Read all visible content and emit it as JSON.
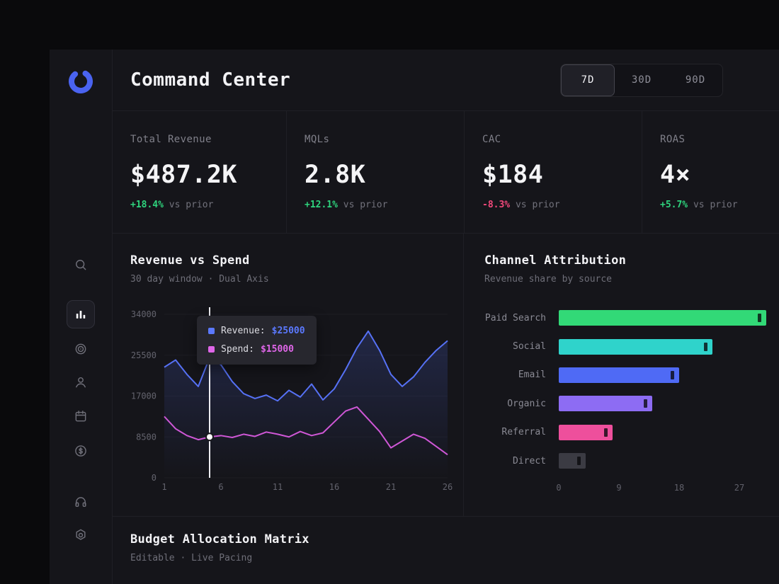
{
  "app": {
    "title": "Command Center"
  },
  "header": {
    "timeframes": [
      {
        "label": "7D",
        "active": true
      },
      {
        "label": "30D",
        "active": false
      },
      {
        "label": "90D",
        "active": false
      }
    ]
  },
  "sidebar": {
    "logo": "brand-logo",
    "items": [
      {
        "icon": "search",
        "active": false
      },
      {
        "icon": "bar-chart",
        "active": true
      },
      {
        "icon": "target",
        "active": false
      },
      {
        "icon": "user",
        "active": false
      },
      {
        "icon": "calendar",
        "active": false
      },
      {
        "icon": "dollar",
        "active": false
      },
      {
        "icon": "headphones",
        "active": false
      },
      {
        "icon": "settings",
        "active": false
      }
    ]
  },
  "kpis": [
    {
      "label": "Total Revenue",
      "value": "$487.2K",
      "delta": "+18.4%",
      "direction": "up",
      "suffix": "vs prior"
    },
    {
      "label": "MQLs",
      "value": "2.8K",
      "delta": "+12.1%",
      "direction": "up",
      "suffix": "vs prior"
    },
    {
      "label": "CAC",
      "value": "$184",
      "delta": "-8.3%",
      "direction": "down",
      "suffix": "vs prior"
    },
    {
      "label": "ROAS",
      "value": "4×",
      "delta": "+5.7%",
      "direction": "up",
      "suffix": "vs prior"
    }
  ],
  "chart_data": [
    {
      "type": "line",
      "title": "Revenue vs Spend",
      "subtitle": "30 day window · Dual Axis",
      "x": [
        1,
        2,
        3,
        4,
        5,
        6,
        7,
        8,
        9,
        10,
        11,
        12,
        13,
        14,
        15,
        16,
        17,
        18,
        19,
        20,
        21,
        22,
        23,
        24,
        25,
        26
      ],
      "x_ticks": [
        1,
        6,
        11,
        16,
        21,
        26
      ],
      "y_ticks": [
        0,
        8500,
        17000,
        25500,
        34000
      ],
      "ylim": [
        0,
        34000
      ],
      "y2lim": [
        0,
        60000
      ],
      "series": [
        {
          "name": "Revenue",
          "color": "#5671f5",
          "axis": "left",
          "values": [
            23000,
            24500,
            21500,
            19000,
            25000,
            23500,
            20000,
            17500,
            16500,
            17200,
            16000,
            18200,
            16800,
            19500,
            16200,
            18500,
            22500,
            27000,
            30500,
            26500,
            21500,
            19000,
            21000,
            24000,
            26500,
            28500
          ]
        },
        {
          "name": "Spend",
          "color": "#cf57d6",
          "axis": "right",
          "values": [
            22500,
            18000,
            15500,
            14000,
            15000,
            15500,
            14800,
            16000,
            15200,
            16800,
            16000,
            15000,
            17000,
            15500,
            16500,
            20500,
            24500,
            26000,
            21500,
            17000,
            11000,
            13500,
            16000,
            14500,
            11500,
            8500
          ]
        }
      ],
      "cursor": {
        "day": 5,
        "tooltip": [
          {
            "label": "Revenue:",
            "value": "$25000",
            "color": "#5b79ff"
          },
          {
            "label": "Spend:",
            "value": "$15000",
            "color": "#df66e8"
          }
        ]
      }
    },
    {
      "type": "bar",
      "orientation": "horizontal",
      "title": "Channel Attribution",
      "subtitle": "Revenue share by source",
      "categories": [
        "Paid Search",
        "Social",
        "Email",
        "Organic",
        "Referral",
        "Direct"
      ],
      "values": [
        31,
        23,
        18,
        14,
        8,
        4
      ],
      "colors": [
        "#32d977",
        "#2fd3cb",
        "#4f6af5",
        "#8d6cf3",
        "#ee4f9c",
        "#3b3b43"
      ],
      "x_ticks": [
        0,
        9,
        18,
        27
      ],
      "xlim": [
        0,
        27
      ]
    }
  ],
  "budget": {
    "title": "Budget Allocation Matrix",
    "subtitle": "Editable · Live Pacing"
  },
  "colors": {
    "green": "#2ed47d",
    "red": "#f2497b",
    "accent": "#4a63f0"
  }
}
